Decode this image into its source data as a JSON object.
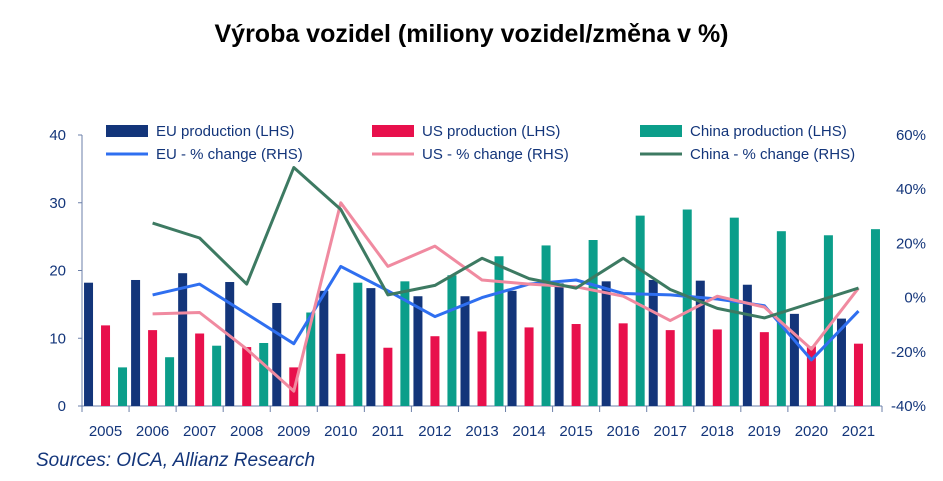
{
  "chart_data": {
    "type": "bar",
    "title": "Výroba vozidel (miliony vozidel/změna v %)",
    "categories": [
      "2005",
      "2006",
      "2007",
      "2008",
      "2009",
      "2010",
      "2011",
      "2012",
      "2013",
      "2014",
      "2015",
      "2016",
      "2017",
      "2018",
      "2019",
      "2020",
      "2021"
    ],
    "left_axis": {
      "ylim": [
        0,
        40
      ],
      "ticks": [
        "0",
        "10",
        "20",
        "30",
        "40"
      ]
    },
    "right_axis": {
      "ylim": [
        -40,
        60
      ],
      "ticks": [
        "-40%",
        "-20%",
        "0%",
        "20%",
        "40%",
        "60%"
      ]
    },
    "bar_series": [
      {
        "name": "EU production (LHS)",
        "color": "#13357a",
        "values": [
          18.2,
          18.6,
          19.6,
          18.3,
          15.2,
          17.0,
          17.4,
          16.2,
          16.2,
          17.0,
          18.1,
          18.4,
          18.6,
          18.5,
          17.9,
          13.6,
          12.9
        ]
      },
      {
        "name": "US production (LHS)",
        "color": "#e8104c",
        "values": [
          11.9,
          11.2,
          10.7,
          8.7,
          5.7,
          7.7,
          8.6,
          10.3,
          11.0,
          11.6,
          12.1,
          12.2,
          11.2,
          11.3,
          10.9,
          8.8,
          9.2
        ]
      },
      {
        "name": "China production (LHS)",
        "color": "#0b9e8a",
        "values": [
          5.7,
          7.2,
          8.9,
          9.3,
          13.8,
          18.2,
          18.4,
          19.3,
          22.1,
          23.7,
          24.5,
          28.1,
          29.0,
          27.8,
          25.8,
          25.2,
          26.1
        ]
      }
    ],
    "line_series": [
      {
        "name": "EU - % change (RHS)",
        "color": "#2f6ff0",
        "values": [
          null,
          1.0,
          5.0,
          -6.0,
          -17.0,
          11.5,
          2.5,
          -7.0,
          0.0,
          5.0,
          6.5,
          1.5,
          1.0,
          -0.5,
          -3.0,
          -23.0,
          -5.0
        ]
      },
      {
        "name": "US - % change (RHS)",
        "color": "#f08aa0",
        "values": [
          null,
          -6.0,
          -5.5,
          -19.0,
          -34.5,
          35.0,
          11.5,
          19.0,
          6.5,
          5.0,
          4.0,
          0.5,
          -8.5,
          0.5,
          -3.5,
          -19.0,
          3.5
        ]
      },
      {
        "name": "China - % change (RHS)",
        "color": "#3d7a62",
        "values": [
          null,
          27.5,
          22.0,
          5.0,
          48.0,
          32.5,
          1.0,
          4.5,
          14.5,
          7.0,
          3.5,
          14.5,
          3.0,
          -4.0,
          -7.5,
          -2.0,
          3.5
        ]
      }
    ]
  },
  "source": "Sources: OICA, Allianz Research"
}
